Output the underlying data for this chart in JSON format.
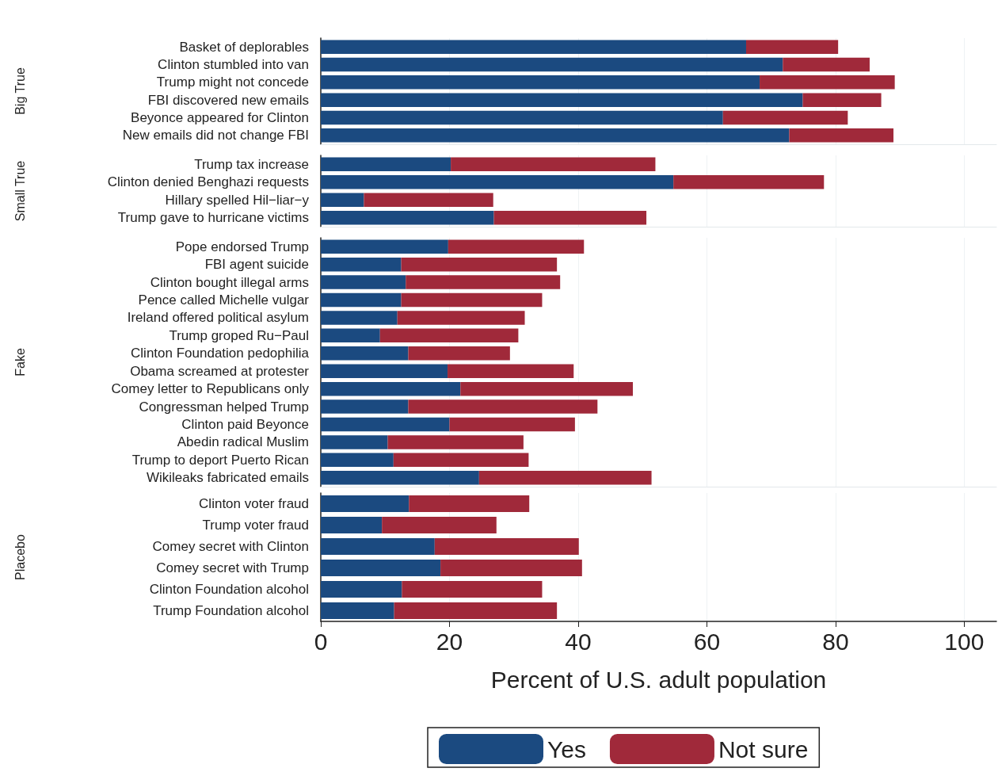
{
  "chart_data": [
    {
      "type": "bar",
      "orientation": "horizontal",
      "stacked": true,
      "ylabel": "Big True",
      "tick_labels": "y",
      "grid": "x",
      "xlim": [
        0,
        105
      ],
      "xticks": [
        0,
        20,
        40,
        60,
        80,
        100
      ],
      "categories": [
        "Basket of deplorables",
        "Clinton stumbled into van",
        "Trump might not concede",
        "FBI discovered new emails",
        "Beyonce appeared for Clinton",
        "New emails did not change FBI"
      ],
      "series": [
        {
          "color": "#1b4a80",
          "values": [
            66.1,
            71.8,
            68.2,
            74.9,
            62.5,
            72.8
          ]
        },
        {
          "color": "#a0293a",
          "values": [
            14.3,
            13.5,
            21.0,
            12.2,
            19.4,
            16.2
          ]
        }
      ]
    },
    {
      "type": "bar",
      "orientation": "horizontal",
      "stacked": true,
      "ylabel": "Small True",
      "tick_labels": "y",
      "grid": "x",
      "xlim": [
        0,
        105
      ],
      "xticks": [
        0,
        20,
        40,
        60,
        80,
        100
      ],
      "categories": [
        "Trump tax increase",
        "Clinton denied Benghazi requests",
        "Hillary spelled Hil−liar−y",
        "Trump gave to hurricane victims"
      ],
      "series": [
        {
          "color": "#1b4a80",
          "values": [
            20.2,
            54.8,
            6.7,
            26.9
          ]
        },
        {
          "color": "#a0293a",
          "values": [
            31.8,
            23.4,
            20.1,
            23.7
          ]
        }
      ]
    },
    {
      "type": "bar",
      "orientation": "horizontal",
      "stacked": true,
      "ylabel": "Fake",
      "tick_labels": "y",
      "grid": "x",
      "xlim": [
        0,
        105
      ],
      "xticks": [
        0,
        20,
        40,
        60,
        80,
        100
      ],
      "categories": [
        "Pope endorsed Trump",
        "FBI agent suicide",
        "Clinton bought illegal arms",
        "Pence called Michelle vulgar",
        "Ireland offered political asylum",
        "Trump groped Ru−Paul",
        "Clinton Foundation pedophilia",
        "Obama screamed at protester",
        "Comey letter to Republicans only",
        "Congressman helped Trump",
        "Clinton paid Beyonce",
        "Abedin radical Muslim",
        "Trump to deport Puerto Rican",
        "Wikileaks fabricated emails"
      ],
      "series": [
        {
          "color": "#1b4a80",
          "values": [
            19.8,
            12.5,
            13.2,
            12.5,
            11.9,
            9.2,
            13.6,
            19.7,
            21.7,
            13.6,
            20.0,
            10.4,
            11.3,
            24.6
          ]
        },
        {
          "color": "#a0293a",
          "values": [
            21.1,
            24.2,
            24.0,
            21.9,
            19.8,
            21.5,
            15.8,
            19.6,
            26.8,
            29.4,
            19.5,
            21.1,
            21.0,
            26.8
          ]
        }
      ]
    },
    {
      "type": "bar",
      "orientation": "horizontal",
      "stacked": true,
      "ylabel": "Placebo",
      "xlabel": "Percent of U.S. adult population",
      "grid": "x",
      "legend": "bottom",
      "xlim": [
        0,
        105
      ],
      "xticks": [
        0,
        20,
        40,
        60,
        80,
        100
      ],
      "categories": [
        "Clinton voter fraud",
        "Trump voter fraud",
        "Comey secret with Clinton",
        "Comey secret with Trump",
        "Clinton Foundation alcohol",
        "Trump Foundation alcohol"
      ],
      "series": [
        {
          "name": "Yes",
          "color": "#1b4a80",
          "values": [
            13.7,
            9.5,
            17.7,
            18.6,
            12.6,
            11.4
          ]
        },
        {
          "name": "Not sure",
          "color": "#a0293a",
          "values": [
            18.7,
            17.8,
            22.4,
            22.0,
            21.8,
            25.3
          ]
        }
      ]
    }
  ]
}
